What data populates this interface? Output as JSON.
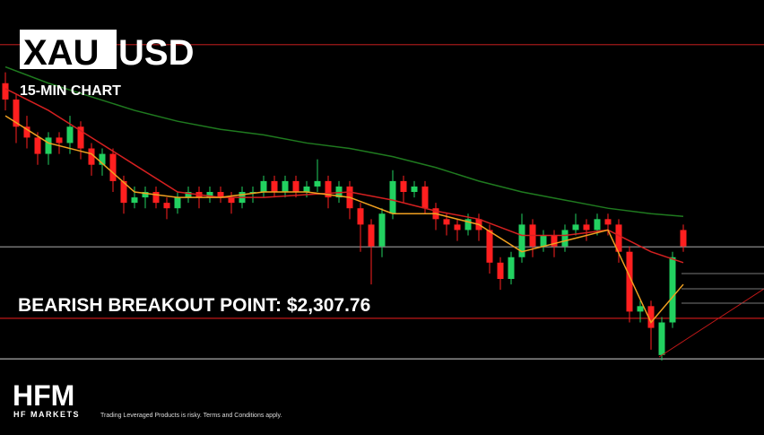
{
  "chart_data": {
    "type": "candlestick",
    "title_highlight": "XAU",
    "title": "USD",
    "subtitle": "15-MIN CHART",
    "annotation": "BEARISH BREAKOUT POINT: $2,307.76",
    "brand": "HFM",
    "brand_subtitle": "HF MARKETS",
    "disclaimer": "Trading Leveraged Products is risky. Terms and Conditions apply.",
    "ylim": [
      2286.3,
      2366.3
    ],
    "up_color": "#22d160",
    "down_color": "#ff1f1f",
    "open": [
      2351,
      2348,
      2343,
      2341,
      2338,
      2341,
      2340,
      2343,
      2339,
      2336,
      2338,
      2333,
      2329,
      2330,
      2331,
      2329,
      2328,
      2330,
      2331,
      2330,
      2331,
      2330,
      2329,
      2331,
      2331,
      2333,
      2331,
      2333,
      2331,
      2332,
      2333,
      2330,
      2332,
      2328,
      2325,
      2321,
      2327,
      2333,
      2331,
      2332,
      2328,
      2326,
      2325,
      2324,
      2326,
      2324,
      2318,
      2315,
      2319,
      2325,
      2321,
      2323,
      2321,
      2324,
      2325,
      2324,
      2326,
      2325,
      2320,
      2309,
      2310,
      2301,
      2307,
      2324
    ],
    "high": [
      2353,
      2349,
      2345,
      2342,
      2342,
      2342,
      2345,
      2344,
      2340,
      2339,
      2339,
      2334,
      2332,
      2332,
      2332,
      2330,
      2331,
      2332,
      2332,
      2332,
      2332,
      2331,
      2332,
      2332,
      2334,
      2334,
      2334,
      2334,
      2333,
      2337,
      2334,
      2333,
      2333,
      2329,
      2326,
      2328,
      2335,
      2334,
      2333,
      2333,
      2329,
      2327,
      2326,
      2327,
      2327,
      2325,
      2319,
      2320,
      2327,
      2326,
      2324,
      2324,
      2325,
      2327,
      2326,
      2327,
      2327,
      2326,
      2321,
      2311,
      2311,
      2308,
      2320,
      2325
    ],
    "low": [
      2346,
      2340,
      2339,
      2336,
      2336,
      2338,
      2338,
      2337,
      2334,
      2334,
      2331,
      2327,
      2328,
      2328,
      2328,
      2326,
      2327,
      2329,
      2328,
      2329,
      2329,
      2327,
      2328,
      2329,
      2330,
      2330,
      2330,
      2330,
      2330,
      2331,
      2328,
      2329,
      2326,
      2320,
      2314,
      2319,
      2326,
      2329,
      2330,
      2327,
      2324,
      2323,
      2322,
      2323,
      2322,
      2316,
      2313,
      2314,
      2318,
      2319,
      2320,
      2319,
      2320,
      2323,
      2322,
      2323,
      2323,
      2318,
      2307,
      2307,
      2302,
      2300,
      2306,
      2320
    ],
    "close": [
      2348,
      2343,
      2341,
      2338,
      2341,
      2340,
      2343,
      2339,
      2336,
      2338,
      2333,
      2329,
      2330,
      2331,
      2329,
      2328,
      2330,
      2331,
      2330,
      2331,
      2330,
      2329,
      2331,
      2331,
      2333,
      2331,
      2333,
      2331,
      2332,
      2333,
      2330,
      2332,
      2328,
      2325,
      2321,
      2327,
      2333,
      2331,
      2332,
      2328,
      2326,
      2325,
      2324,
      2326,
      2324,
      2318,
      2315,
      2319,
      2325,
      2321,
      2323,
      2321,
      2324,
      2325,
      2324,
      2326,
      2325,
      2320,
      2309,
      2310,
      2306,
      2307,
      2319,
      2321
    ],
    "moving_averages": [
      {
        "color": "#1f7a1f",
        "x": [
          0,
          4,
          8,
          12,
          16,
          20,
          24,
          28,
          32,
          36,
          40,
          44,
          48,
          52,
          56,
          60,
          63
        ],
        "values": [
          2354,
          2351,
          2348.5,
          2346,
          2344,
          2342.5,
          2341.5,
          2340,
          2339,
          2337.5,
          2335.5,
          2333,
          2331,
          2329.5,
          2328,
          2327,
          2326.5
        ]
      },
      {
        "color": "#d42020",
        "x": [
          0,
          4,
          8,
          12,
          16,
          20,
          24,
          28,
          32,
          36,
          40,
          44,
          48,
          52,
          56,
          60,
          63
        ],
        "values": [
          2350,
          2346,
          2341,
          2336,
          2331,
          2330,
          2330,
          2330.5,
          2331,
          2329.5,
          2327.5,
          2326,
          2323,
          2323,
          2324,
          2320,
          2318
        ]
      },
      {
        "color": "#f0a020",
        "x": [
          0,
          4,
          8,
          12,
          16,
          20,
          24,
          28,
          32,
          36,
          40,
          44,
          48,
          52,
          56,
          60,
          63
        ],
        "values": [
          2345,
          2340,
          2338,
          2331,
          2330,
          2330,
          2331,
          2331,
          2330,
          2327,
          2327,
          2325,
          2320,
          2322,
          2324,
          2307,
          2314
        ]
      }
    ],
    "levels": [
      {
        "price": 2358.1,
        "color": "#a01818"
      },
      {
        "price": 2320.9,
        "color": "#8a8a8a"
      },
      {
        "price": 2307.76,
        "color": "#c01818"
      },
      {
        "price": 2300.3,
        "color": "#aaaaaa"
      }
    ]
  }
}
